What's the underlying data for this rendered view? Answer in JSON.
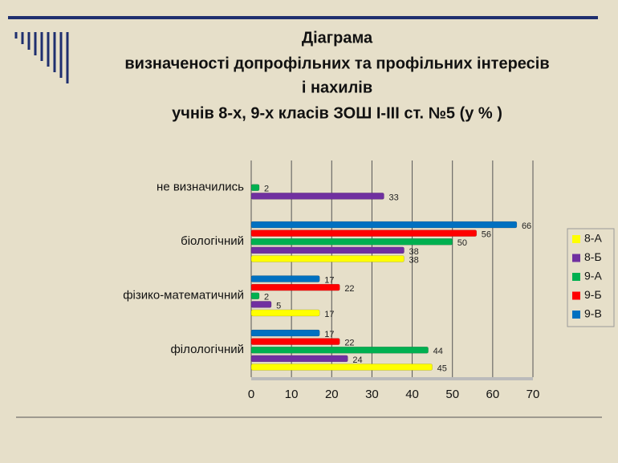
{
  "chart_data": {
    "type": "hbar",
    "title": [
      "Діаграма",
      "визначеності допрофільних та профільних інтересів",
      "і  нахилів",
      "учнів 8-х, 9-х  класів ЗОШ І-ІІІ ст. №5 (у % )"
    ],
    "categories": [
      "не визначились",
      "біологічний",
      "фізико-математичний",
      "філологічний"
    ],
    "series": [
      {
        "name": "8-А",
        "color": "#ffff00",
        "values": [
          null,
          38,
          17,
          45
        ]
      },
      {
        "name": "8-Б",
        "color": "#7030a0",
        "values": [
          33,
          38,
          5,
          24
        ]
      },
      {
        "name": "9-А",
        "color": "#00b050",
        "values": [
          2,
          50,
          2,
          44
        ]
      },
      {
        "name": "9-Б",
        "color": "#ff0000",
        "values": [
          null,
          56,
          22,
          22
        ]
      },
      {
        "name": "9-В",
        "color": "#0070c0",
        "values": [
          null,
          66,
          17,
          17
        ]
      }
    ],
    "xlim": [
      0,
      70
    ],
    "xticks": [
      0,
      10,
      20,
      30,
      40,
      50,
      60,
      70
    ],
    "grid": true
  }
}
